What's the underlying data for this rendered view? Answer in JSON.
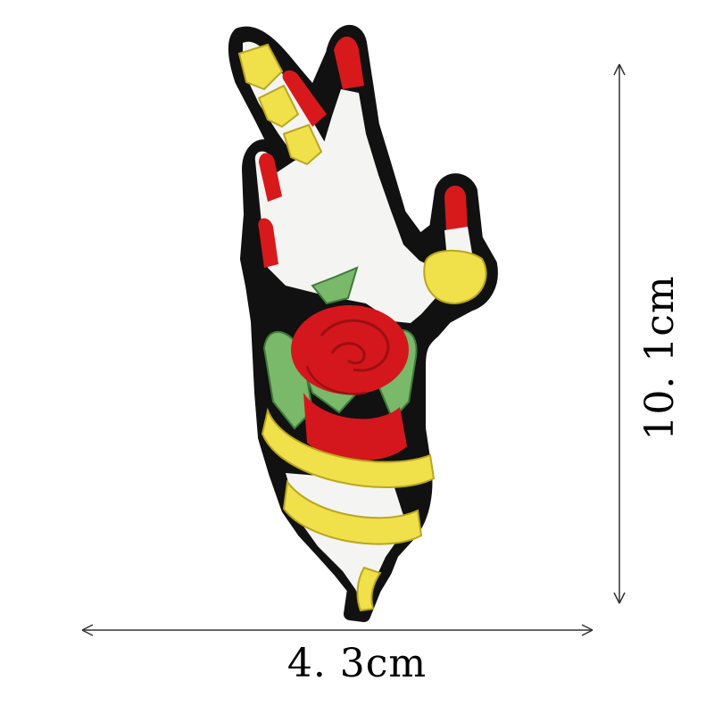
{
  "dimensions": {
    "width_label": "4. 3cm",
    "height_label": "10. 1cm"
  },
  "colors": {
    "outline": "#111111",
    "skin": "#f4f4f2",
    "nail": "#d7191b",
    "rose": "#d4171c",
    "rose_dark": "#9c0f12",
    "leaf": "#7ab86a",
    "leaf_dark": "#3f7a3a",
    "ribbon": "#f0e04a",
    "ribbon_dark": "#b9a620"
  },
  "icons": [
    "hand-rose-patch-icon",
    "horizontal-dimension-arrow-icon",
    "vertical-dimension-arrow-icon"
  ]
}
